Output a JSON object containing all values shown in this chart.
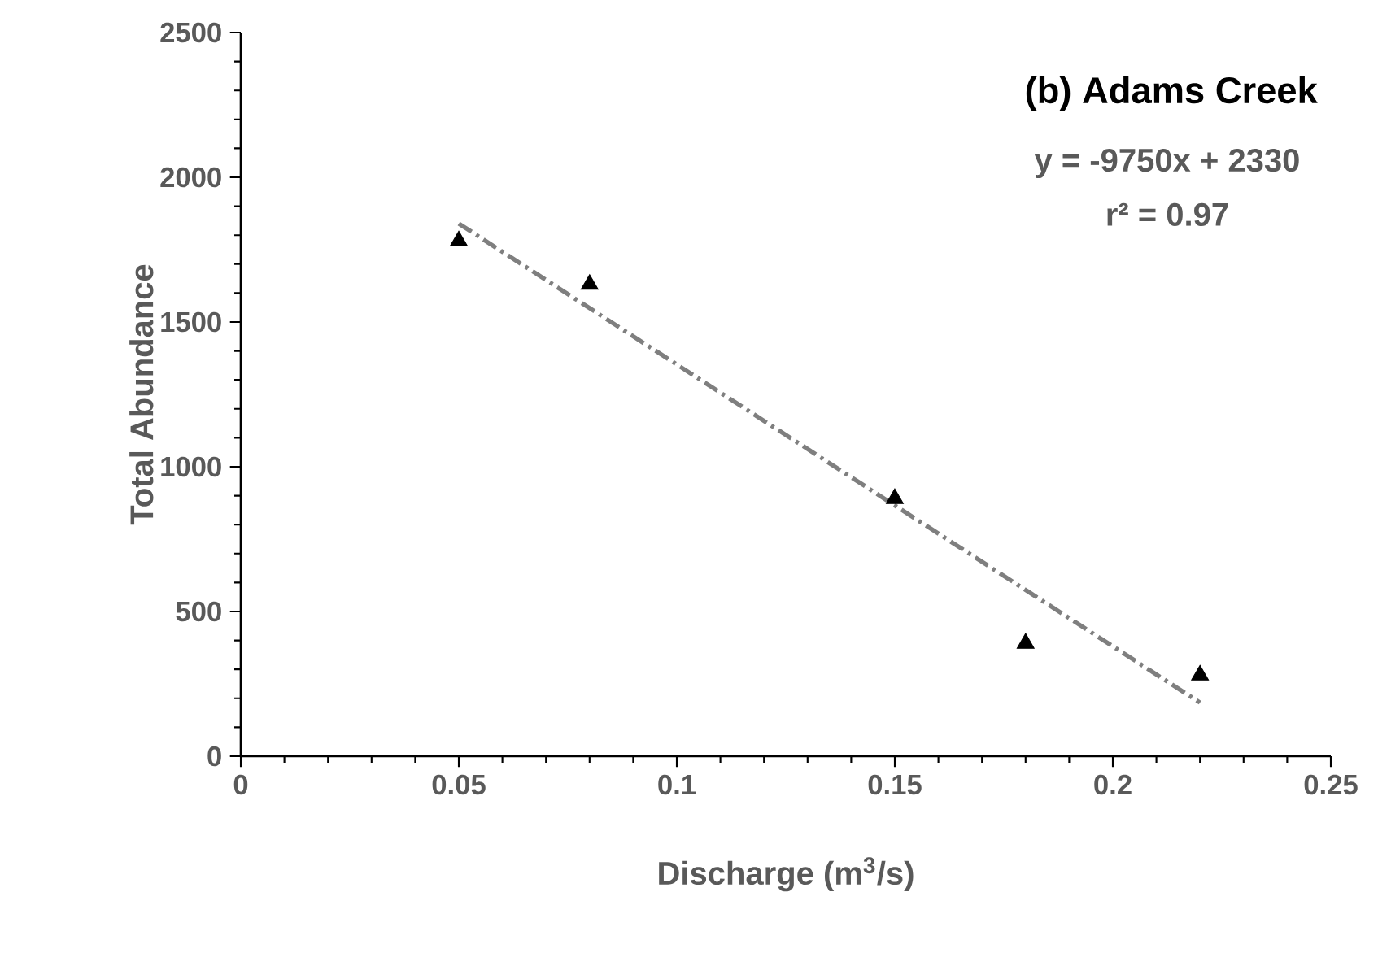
{
  "chart_data": {
    "type": "scatter",
    "title": "(b) Adams Creek",
    "xlabel": "Discharge (m$^{3}$/s)",
    "ylabel": "Total Abundance",
    "annotations": [
      "y = -9750x + 2330",
      "r² = 0.97"
    ],
    "marker": "triangle",
    "series": [
      {
        "color": "#000000",
        "x": [
          0.05,
          0.08,
          0.15,
          0.18,
          0.22
        ],
        "values": [
          1780,
          1630,
          890,
          390,
          280
        ]
      },
      {
        "type": "line",
        "color": "#7f7f7f",
        "line_style": "dashed",
        "marker": "none",
        "x": [
          0.05,
          0.22
        ],
        "values": [
          1840,
          185
        ]
      }
    ],
    "xlim": [
      0,
      0.25
    ],
    "ylim": [
      0,
      2500
    ],
    "xticks": [
      0,
      0.05,
      0.1,
      0.15,
      0.2,
      0.25
    ],
    "yticks": [
      0,
      500,
      1000,
      1500,
      2000,
      2500
    ]
  }
}
